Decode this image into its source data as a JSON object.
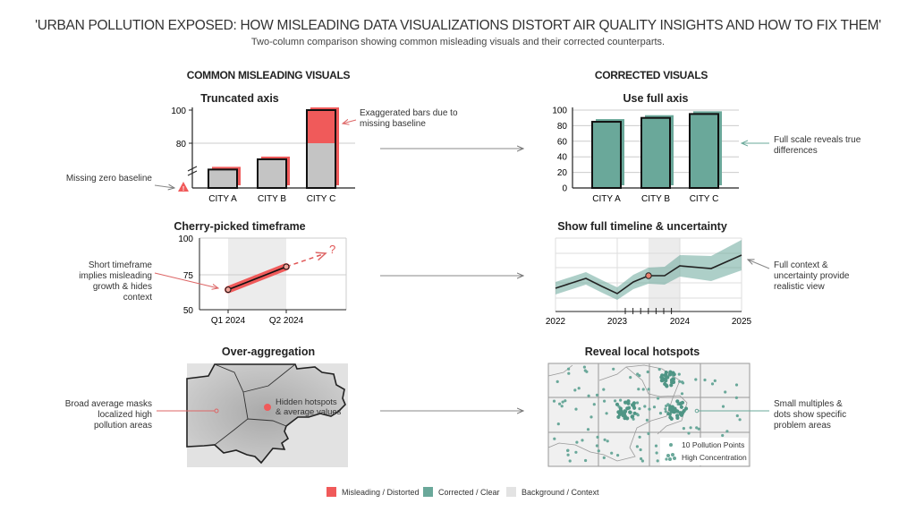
{
  "header": {
    "title": "'URBAN POLLUTION EXPOSED: HOW MISLEADING DATA VISUALIZATIONS DISTORT AIR QUALITY INSIGHTS AND HOW TO FIX THEM'",
    "subtitle": "Two-column comparison showing common misleading visuals and their corrected counterparts."
  },
  "columns": {
    "left": "COMMON MISLEADING VISUALS",
    "right": "CORRECTED VISUALS"
  },
  "colors": {
    "misleading": "#f05a5a",
    "corrected": "#6aa89a",
    "background": "#e6e6e6"
  },
  "panels": {
    "truncated": {
      "title": "Truncated axis",
      "y_ticks": [
        "100",
        "80"
      ],
      "categories": [
        "CITY A",
        "CITY B",
        "CITY C"
      ],
      "values": [
        71,
        76,
        100
      ],
      "ylim": [
        62,
        100
      ],
      "note_bars": "Exaggerated bars due to missing baseline",
      "note_baseline": "Missing zero baseline",
      "icon": "warning-icon"
    },
    "full_axis": {
      "title": "Use full axis",
      "y_ticks": [
        "100",
        "80",
        "60",
        "40",
        "20",
        "0"
      ],
      "categories": [
        "CITY A",
        "CITY B",
        "CITY C"
      ],
      "values": [
        85,
        90,
        95
      ],
      "ylim": [
        0,
        100
      ],
      "note": "Full scale reveals true differences"
    },
    "cherry": {
      "title": "Cherry-picked timeframe",
      "y_ticks": [
        "100",
        "75",
        "50"
      ],
      "x_labels": [
        "Q1 2024",
        "Q2 2024"
      ],
      "values": [
        64,
        80
      ],
      "ylim": [
        50,
        100
      ],
      "question": "?",
      "note": "Short timeframe implies misleading growth & hides context"
    },
    "timeline": {
      "title": "Show full timeline & uncertainty",
      "x_labels": [
        "2022",
        "2023",
        "2024",
        "2025"
      ],
      "note": "Full context & uncertainty provide realistic view"
    },
    "aggregation": {
      "title": "Over-aggregation",
      "hotspot_label": "Hidden hotspots & average values",
      "note": "Broad average masks localized high pollution areas"
    },
    "hotspots": {
      "title": "Reveal local hotspots",
      "legend_points": "10 Pollution Points",
      "legend_high": "High Concentration",
      "note": "Small multiples & dots show specific problem areas"
    }
  },
  "legend": [
    {
      "label": "Misleading / Distorted",
      "color": "#f05a5a"
    },
    {
      "label": "Corrected / Clear",
      "color": "#6aa89a"
    },
    {
      "label": "Background / Context",
      "color": "#e3e3e3"
    }
  ]
}
